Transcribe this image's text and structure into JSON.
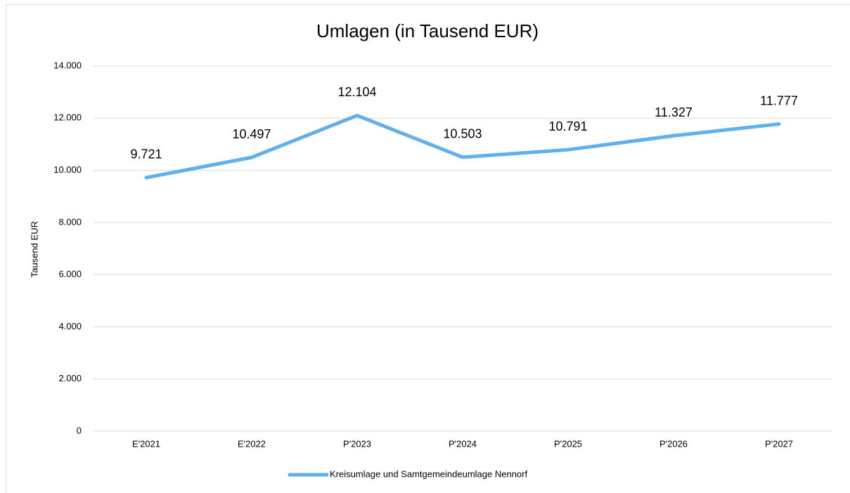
{
  "chart_data": {
    "type": "line",
    "title": "Umlagen (in Tausend EUR)",
    "y_label": "Tausend EUR",
    "categories": [
      "E'2021",
      "E'2022",
      "P'2023",
      "P'2024",
      "P'2025",
      "P'2026",
      "P'2027"
    ],
    "series": [
      {
        "name": "Kreisumlage und Samtgemeindeumlage Nennorf",
        "color": "#5fb0ed",
        "values": [
          9721,
          10497,
          12104,
          10503,
          10791,
          11327,
          11777
        ],
        "value_labels": [
          "9.721",
          "10.497",
          "12.104",
          "10.503",
          "10.791",
          "11.327",
          "11.777"
        ]
      }
    ],
    "ylim": [
      0,
      14000
    ],
    "yticks": [
      0,
      {
        "value": 2000,
        "label": "2.000"
      },
      {
        "value": 4000,
        "label": "4.000"
      },
      {
        "value": 6000,
        "label": "6.000"
      },
      {
        "value": 8000,
        "label": "8.000"
      },
      {
        "value": 10000,
        "label": "10.000"
      },
      {
        "value": 12000,
        "label": "12.000"
      },
      {
        "value": 14000,
        "label": "14.000"
      }
    ],
    "grid": true,
    "legend": "bottom"
  }
}
